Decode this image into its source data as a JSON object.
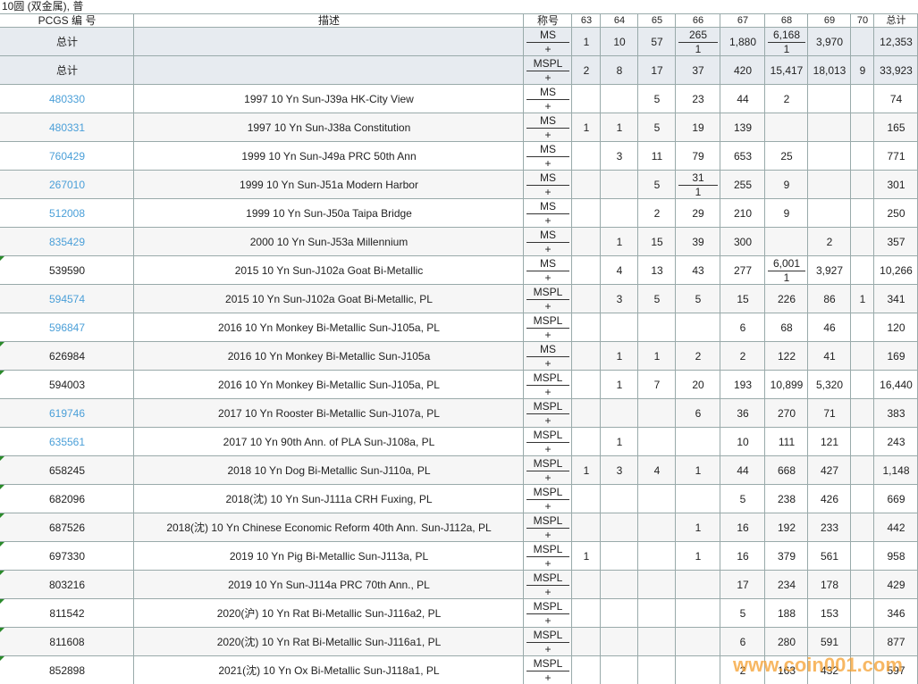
{
  "title": "10圆 (双金属), 普",
  "header": [
    "PCGS 编 号",
    "描述",
    "称号",
    "63",
    "64",
    "65",
    "66",
    "67",
    "68",
    "69",
    "70",
    "总计"
  ],
  "totals": [
    {
      "pcgs": "总计",
      "desig": "MS",
      "plus": "+",
      "grades": [
        "1",
        "10",
        "57",
        {
          "value": "265",
          "plus": "1"
        },
        "1,880",
        {
          "value": "6,168",
          "plus": "1"
        },
        "3,970",
        null
      ],
      "total": "12,353"
    },
    {
      "pcgs": "总计",
      "desig": "MSPL",
      "plus": "+",
      "grades": [
        "2",
        "8",
        "17",
        "37",
        "420",
        "15,417",
        "18,013",
        "9"
      ],
      "total": "33,923"
    }
  ],
  "rows": [
    {
      "pcgs": "480330",
      "link": true,
      "desc": "1997 10 Yn Sun-J39a HK-City View",
      "desig": "MS",
      "plus": "+",
      "grades": [
        null,
        null,
        "5",
        "23",
        "44",
        "2",
        null,
        null
      ],
      "total": "74"
    },
    {
      "pcgs": "480331",
      "link": true,
      "desc": "1997 10 Yn Sun-J38a Constitution",
      "desig": "MS",
      "plus": "+",
      "grades": [
        "1",
        "1",
        "5",
        "19",
        "139",
        null,
        null,
        null
      ],
      "total": "165"
    },
    {
      "pcgs": "760429",
      "link": true,
      "desc": "1999 10 Yn Sun-J49a PRC 50th Ann",
      "desig": "MS",
      "plus": "+",
      "grades": [
        null,
        "3",
        "11",
        "79",
        "653",
        "25",
        null,
        null
      ],
      "total": "771"
    },
    {
      "pcgs": "267010",
      "link": true,
      "desc": "1999 10 Yn Sun-J51a Modern Harbor",
      "desig": "MS",
      "plus": "+",
      "grades": [
        null,
        null,
        "5",
        {
          "value": "31",
          "plus": "1"
        },
        "255",
        "9",
        null,
        null
      ],
      "total": "301"
    },
    {
      "pcgs": "512008",
      "link": true,
      "desc": "1999 10 Yn Sun-J50a Taipa Bridge",
      "desig": "MS",
      "plus": "+",
      "grades": [
        null,
        null,
        "2",
        "29",
        "210",
        "9",
        null,
        null
      ],
      "total": "250"
    },
    {
      "pcgs": "835429",
      "link": true,
      "desc": "2000 10 Yn Sun-J53a Millennium",
      "desig": "MS",
      "plus": "+",
      "grades": [
        null,
        "1",
        "15",
        "39",
        "300",
        null,
        "2",
        null
      ],
      "total": "357"
    },
    {
      "pcgs": "539590",
      "link": false,
      "desc": "2015 10 Yn Sun-J102a Goat Bi-Metallic",
      "desig": "MS",
      "plus": "+",
      "grades": [
        null,
        "4",
        "13",
        "43",
        "277",
        {
          "value": "6,001",
          "plus": "1"
        },
        "3,927",
        null
      ],
      "total": "10,266"
    },
    {
      "pcgs": "594574",
      "link": true,
      "desc": "2015 10 Yn Sun-J102a Goat Bi-Metallic, PL",
      "desig": "MSPL",
      "plus": "+",
      "grades": [
        null,
        "3",
        "5",
        "5",
        "15",
        "226",
        "86",
        "1"
      ],
      "total": "341"
    },
    {
      "pcgs": "596847",
      "link": true,
      "desc": "2016 10 Yn Monkey Bi-Metallic Sun-J105a, PL",
      "desig": "MSPL",
      "plus": "+",
      "grades": [
        null,
        null,
        null,
        null,
        "6",
        "68",
        "46",
        null
      ],
      "total": "120"
    },
    {
      "pcgs": "626984",
      "link": false,
      "desc": "2016 10 Yn Monkey Bi-Metallic Sun-J105a",
      "desig": "MS",
      "plus": "+",
      "grades": [
        null,
        "1",
        "1",
        "2",
        "2",
        "122",
        "41",
        null
      ],
      "total": "169"
    },
    {
      "pcgs": "594003",
      "link": false,
      "desc": "2016 10 Yn Monkey Bi-Metallic Sun-J105a, PL",
      "desig": "MSPL",
      "plus": "+",
      "grades": [
        null,
        "1",
        "7",
        "20",
        "193",
        "10,899",
        "5,320",
        null
      ],
      "total": "16,440"
    },
    {
      "pcgs": "619746",
      "link": true,
      "desc": "2017 10 Yn Rooster Bi-Metallic Sun-J107a, PL",
      "desig": "MSPL",
      "plus": "+",
      "grades": [
        null,
        null,
        null,
        "6",
        "36",
        "270",
        "71",
        null
      ],
      "total": "383"
    },
    {
      "pcgs": "635561",
      "link": true,
      "desc": "2017 10 Yn 90th Ann. of PLA Sun-J108a, PL",
      "desig": "MSPL",
      "plus": "+",
      "grades": [
        null,
        "1",
        null,
        null,
        "10",
        "111",
        "121",
        null
      ],
      "total": "243"
    },
    {
      "pcgs": "658245",
      "link": false,
      "desc": "2018 10 Yn Dog Bi-Metallic Sun-J110a, PL",
      "desig": "MSPL",
      "plus": "+",
      "grades": [
        "1",
        "3",
        "4",
        "1",
        "44",
        "668",
        "427",
        null
      ],
      "total": "1,148"
    },
    {
      "pcgs": "682096",
      "link": false,
      "desc": "2018(沈) 10 Yn Sun-J111a CRH Fuxing, PL",
      "desig": "MSPL",
      "plus": "+",
      "grades": [
        null,
        null,
        null,
        null,
        "5",
        "238",
        "426",
        null
      ],
      "total": "669"
    },
    {
      "pcgs": "687526",
      "link": false,
      "desc": "2018(沈) 10 Yn Chinese Economic Reform 40th Ann. Sun-J112a, PL",
      "desig": "MSPL",
      "plus": "+",
      "grades": [
        null,
        null,
        null,
        "1",
        "16",
        "192",
        "233",
        null
      ],
      "total": "442"
    },
    {
      "pcgs": "697330",
      "link": false,
      "desc": "2019 10 Yn Pig Bi-Metallic Sun-J113a, PL",
      "desig": "MSPL",
      "plus": "+",
      "grades": [
        "1",
        null,
        null,
        "1",
        "16",
        "379",
        "561",
        null
      ],
      "total": "958"
    },
    {
      "pcgs": "803216",
      "link": false,
      "desc": "2019 10 Yn Sun-J114a PRC 70th Ann., PL",
      "desig": "MSPL",
      "plus": "+",
      "grades": [
        null,
        null,
        null,
        null,
        "17",
        "234",
        "178",
        null
      ],
      "total": "429"
    },
    {
      "pcgs": "811542",
      "link": false,
      "desc": "2020(沪) 10 Yn Rat Bi-Metallic Sun-J116a2, PL",
      "desig": "MSPL",
      "plus": "+",
      "grades": [
        null,
        null,
        null,
        null,
        "5",
        "188",
        "153",
        null
      ],
      "total": "346"
    },
    {
      "pcgs": "811608",
      "link": false,
      "desc": "2020(沈) 10 Yn Rat Bi-Metallic Sun-J116a1, PL",
      "desig": "MSPL",
      "plus": "+",
      "grades": [
        null,
        null,
        null,
        null,
        "6",
        "280",
        "591",
        null
      ],
      "total": "877"
    },
    {
      "pcgs": "852898",
      "link": false,
      "desc": "2021(沈) 10 Yn Ox Bi-Metallic Sun-J118a1, PL",
      "desig": "MSPL",
      "plus": "+",
      "grades": [
        null,
        null,
        null,
        null,
        "2",
        "163",
        "432",
        null
      ],
      "total": "597"
    }
  ],
  "watermark": "www.coin001.com"
}
